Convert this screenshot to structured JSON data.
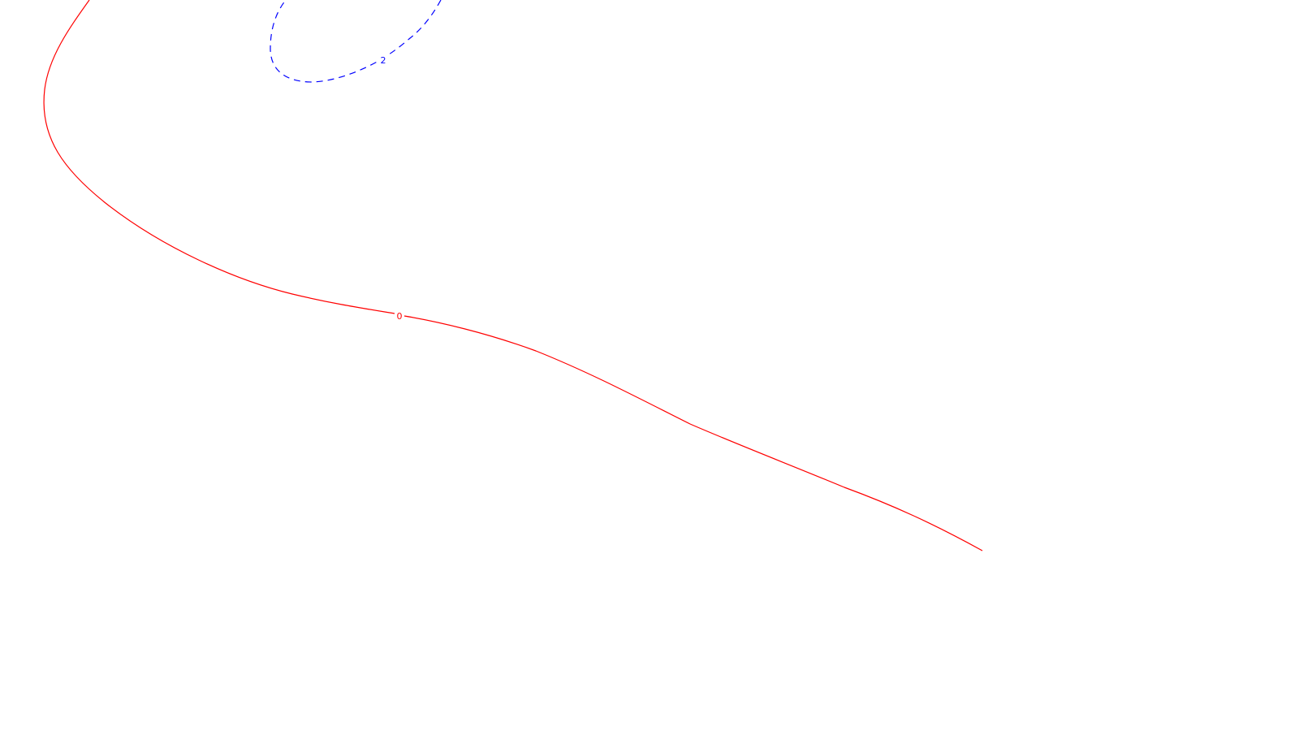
{
  "chart_data": {
    "type": "line",
    "title": "",
    "xlabel": "",
    "ylabel": "",
    "grid": false,
    "legend": "none",
    "series": [
      {
        "level_label": "0",
        "color": "#ff0000",
        "dash": "solid"
      },
      {
        "level_label": "2",
        "color": "#0000ff",
        "dash": "dashed"
      }
    ]
  }
}
